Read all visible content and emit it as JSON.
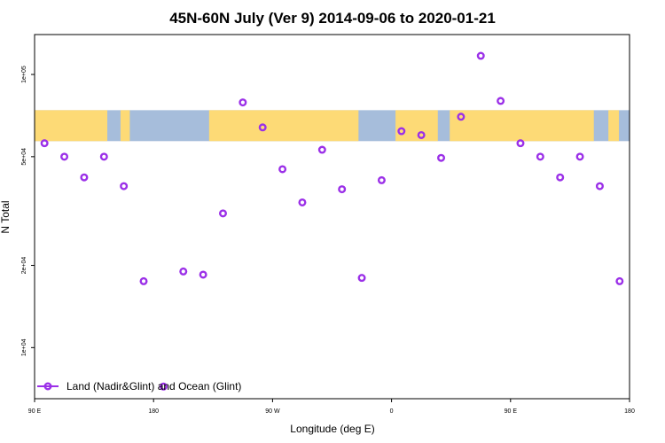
{
  "chart_data": {
    "type": "scatter",
    "title": "45N-60N July (Ver 9)   2014-09-06 to 2020-01-21",
    "xlabel": "Longitude (deg E)",
    "ylabel": "N Total",
    "x_ticks": [
      {
        "value": -90,
        "label": "90 E"
      },
      {
        "value": 0,
        "label": "180"
      },
      {
        "value": 90,
        "label": "90 W"
      },
      {
        "value": 180,
        "label": "0"
      },
      {
        "value": 270,
        "label": "90 E"
      },
      {
        "value": 360,
        "label": "180"
      }
    ],
    "y_scale": "log",
    "y_ticks": [
      {
        "value": 10000,
        "label": "1e+04"
      },
      {
        "value": 20000,
        "label": "2e+04"
      },
      {
        "value": 50000,
        "label": "5e+04"
      },
      {
        "value": 100000,
        "label": "1e+05"
      }
    ],
    "xlim": [
      -90,
      360
    ],
    "ylim": [
      6500,
      140000
    ],
    "grid": false,
    "legend": {
      "position": "bottom-left"
    },
    "map_band": {
      "y_range": [
        57000,
        74000
      ],
      "ocean_color": "#A6BDDB",
      "land_color": "#FDDA76"
    },
    "series": [
      {
        "name": "Land (Nadir&Glint) and Ocean (Glint)",
        "color": "#9B30E8",
        "marker": "open-circle",
        "x": [
          -82.5,
          -67.5,
          -52.5,
          -37.5,
          -22.5,
          -7.5,
          7.5,
          22.5,
          37.5,
          52.5,
          67.5,
          82.5,
          97.5,
          112.5,
          127.5,
          142.5,
          157.5,
          172.5,
          187.5,
          202.5,
          217.5,
          232.5,
          247.5,
          262.5,
          277.5,
          292.5,
          307.5,
          322.5,
          337.5,
          352.5
        ],
        "y": [
          56000,
          50000,
          42000,
          50000,
          39000,
          17500,
          7200,
          19000,
          18500,
          31000,
          79000,
          64000,
          45000,
          34000,
          53000,
          38000,
          18000,
          41000,
          62000,
          60000,
          49500,
          70000,
          117000,
          80000,
          56000,
          50000,
          42000,
          50000,
          39000,
          17500
        ]
      }
    ]
  }
}
